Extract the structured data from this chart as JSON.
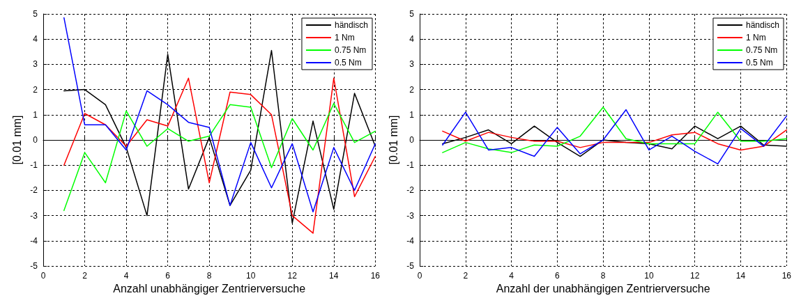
{
  "chart_data": [
    {
      "type": "line",
      "xlabel": "Anzahl unabhängiger Zentrierversuche",
      "ylabel": "[0.01 mm]",
      "x": [
        1,
        2,
        3,
        4,
        5,
        6,
        7,
        8,
        9,
        10,
        11,
        12,
        13,
        14,
        15,
        16
      ],
      "xlim": [
        0,
        16
      ],
      "xticks": [
        0,
        2,
        4,
        6,
        8,
        10,
        12,
        14,
        16
      ],
      "ylim": [
        -5,
        5
      ],
      "yticks": [
        -5,
        -4,
        -3,
        -2,
        -1,
        0,
        1,
        2,
        3,
        4,
        5
      ],
      "grid": true,
      "legend": "top right",
      "marker": "none",
      "line_style": "solid",
      "series": [
        {
          "name": "händisch",
          "color": "#000000",
          "values": [
            1.95,
            2.0,
            1.4,
            -0.3,
            -3.0,
            3.4,
            -1.95,
            0.1,
            -2.6,
            -1.2,
            3.55,
            -3.3,
            0.75,
            -2.75,
            1.85,
            -0.25
          ]
        },
        {
          "name": "1 Nm",
          "color": "#ff0000",
          "values": [
            -1.0,
            1.05,
            0.6,
            -0.25,
            0.8,
            0.55,
            2.45,
            -1.7,
            1.9,
            1.8,
            1.0,
            -3.0,
            -3.7,
            2.45,
            -2.25,
            -0.65
          ]
        },
        {
          "name": "0.75 Nm",
          "color": "#00ff00",
          "values": [
            -2.8,
            -0.5,
            -1.7,
            1.15,
            -0.25,
            0.45,
            -0.05,
            0.15,
            1.4,
            1.3,
            -1.1,
            0.85,
            -0.4,
            1.45,
            -0.1,
            0.35
          ]
        },
        {
          "name": "0.5 Nm",
          "color": "#0000ff",
          "values": [
            4.85,
            0.6,
            0.6,
            -0.4,
            1.95,
            1.4,
            0.7,
            0.5,
            -2.6,
            -0.1,
            -1.9,
            -0.15,
            -2.85,
            -0.3,
            -2.0,
            -0.15
          ]
        }
      ]
    },
    {
      "type": "line",
      "xlabel": "Anzahl der unabhängigen Zentrierversuche",
      "ylabel": "[0.01 mm]",
      "x": [
        1,
        2,
        3,
        4,
        5,
        6,
        7,
        8,
        9,
        10,
        11,
        12,
        13,
        14,
        15,
        16
      ],
      "xlim": [
        0,
        16
      ],
      "xticks": [
        0,
        2,
        4,
        6,
        8,
        10,
        12,
        14,
        16
      ],
      "ylim": [
        -5,
        5
      ],
      "yticks": [
        -5,
        -4,
        -3,
        -2,
        -1,
        0,
        1,
        2,
        3,
        4,
        5
      ],
      "grid": true,
      "legend": "top right",
      "marker": "none",
      "line_style": "solid",
      "series": [
        {
          "name": "händisch",
          "color": "#000000",
          "values": [
            -0.15,
            0.1,
            0.4,
            -0.15,
            0.55,
            -0.1,
            -0.65,
            0.0,
            -0.1,
            -0.15,
            -0.35,
            0.55,
            0.05,
            0.55,
            -0.2,
            -0.25
          ]
        },
        {
          "name": "1 Nm",
          "color": "#ff0000",
          "values": [
            0.35,
            -0.05,
            0.3,
            0.1,
            -0.05,
            -0.05,
            -0.3,
            -0.1,
            -0.1,
            -0.1,
            0.2,
            0.3,
            -0.15,
            -0.4,
            -0.25,
            0.4
          ]
        },
        {
          "name": "0.75 Nm",
          "color": "#00ff00",
          "values": [
            -0.5,
            -0.1,
            -0.35,
            -0.5,
            -0.2,
            -0.25,
            0.15,
            1.3,
            0.05,
            -0.15,
            -0.15,
            -0.15,
            1.1,
            -0.05,
            -0.05,
            0.05
          ]
        },
        {
          "name": "0.5 Nm",
          "color": "#0000ff",
          "values": [
            -0.2,
            1.1,
            -0.4,
            -0.3,
            -0.65,
            0.5,
            -0.55,
            0.0,
            1.2,
            -0.4,
            0.15,
            -0.45,
            -0.95,
            0.45,
            -0.25,
            0.95
          ]
        }
      ]
    }
  ]
}
